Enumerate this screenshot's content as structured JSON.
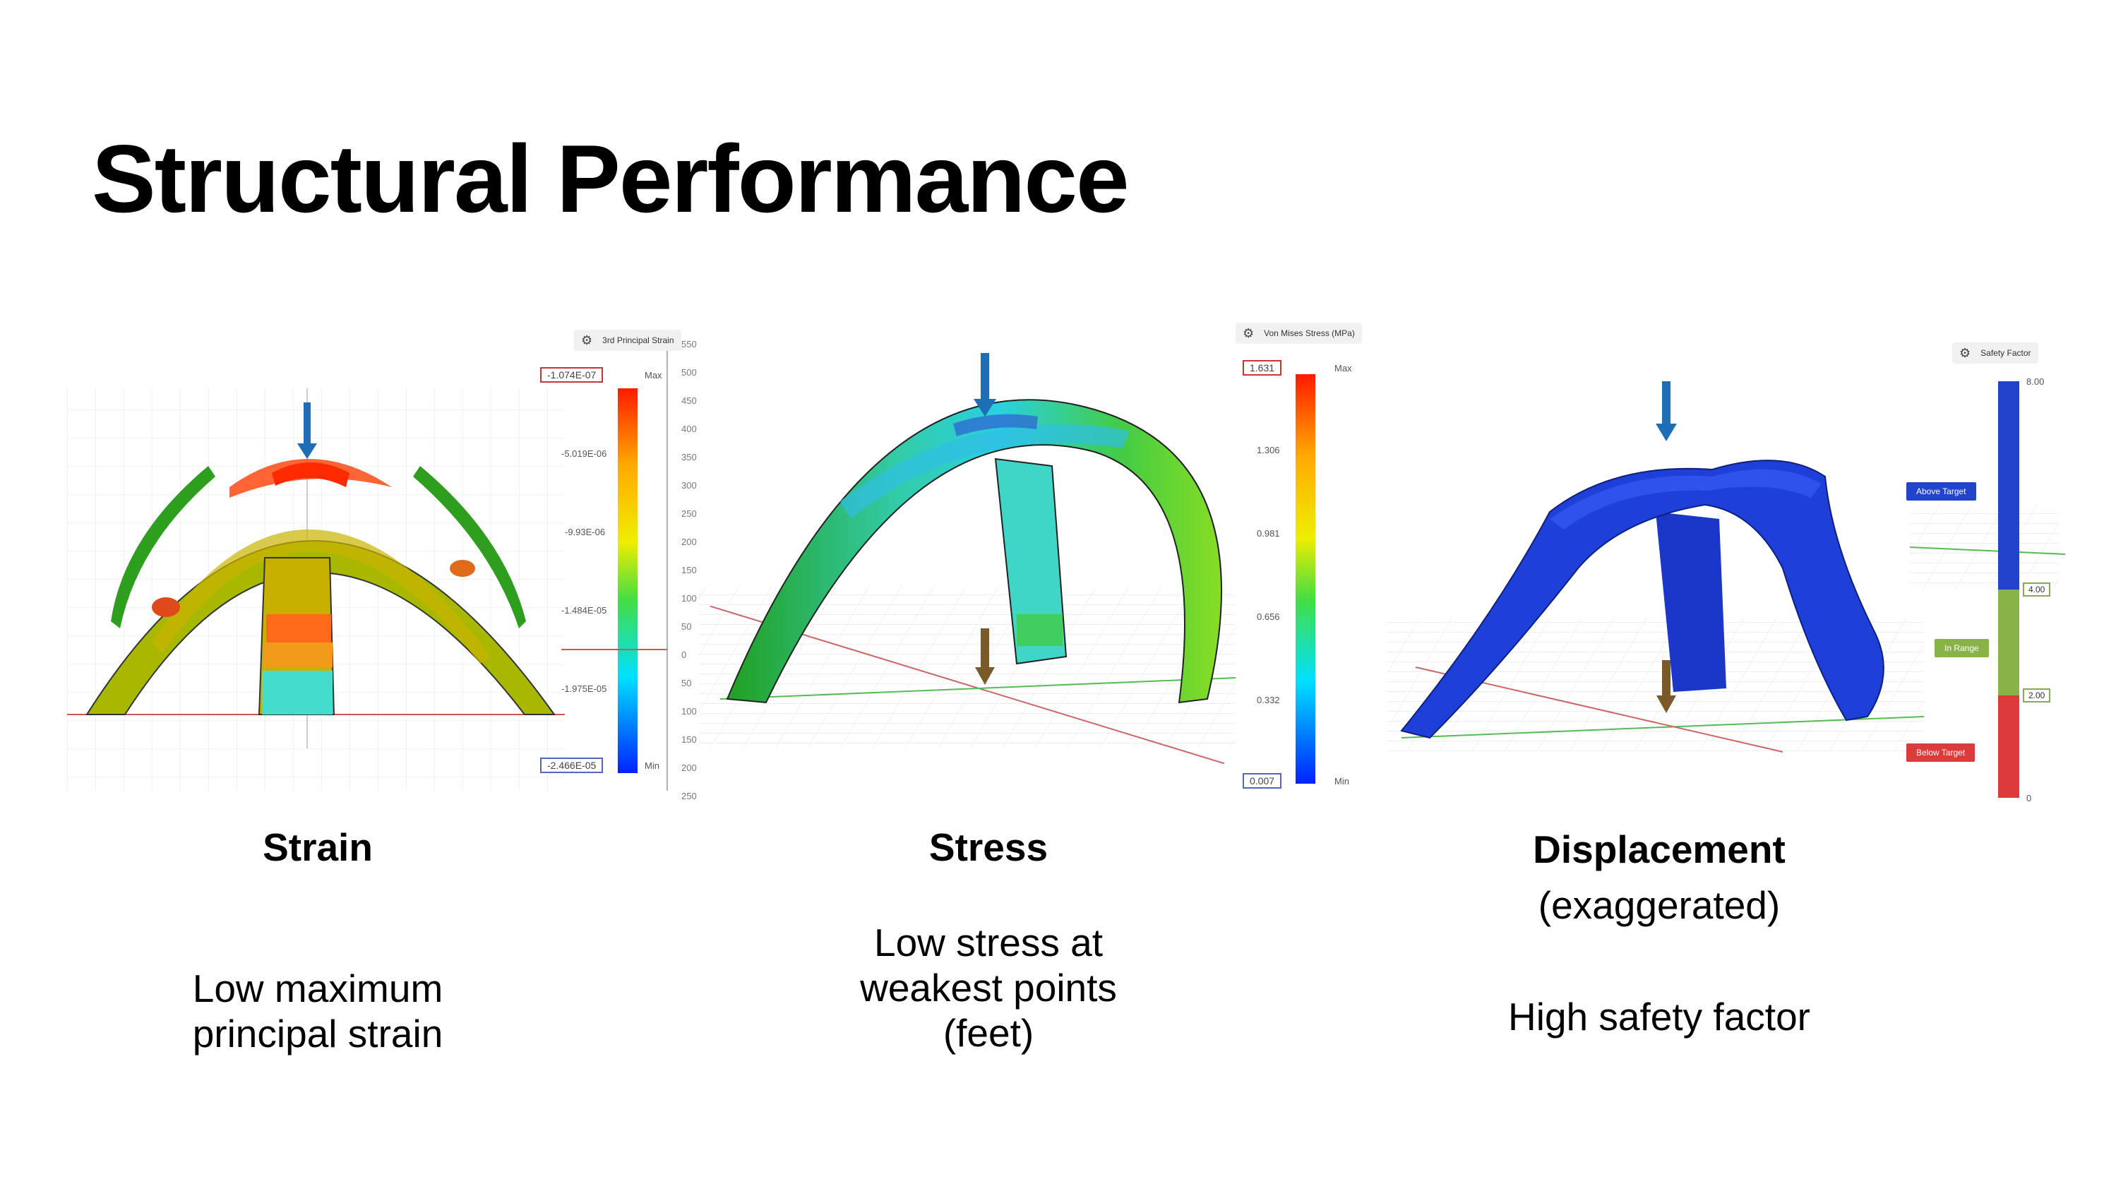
{
  "slide": {
    "title": "Structural Performance"
  },
  "strain": {
    "legend_title": "3rd Principal Strain",
    "max_value": "-1.074E-07",
    "min_value": "-2.466E-05",
    "ticks": [
      "-5.019E-06",
      "-9.93E-06",
      "-1.484E-05",
      "-1.975E-05"
    ],
    "max_label": "Max",
    "min_label": "Min",
    "ruler": [
      "550",
      "500",
      "450",
      "400",
      "350",
      "300",
      "250",
      "200",
      "150",
      "100",
      "50",
      "0",
      "50",
      "100",
      "150",
      "200",
      "250"
    ],
    "caption_title": "Strain",
    "caption_lines": [
      "Low maximum",
      "principal strain"
    ]
  },
  "stress": {
    "legend_title": "Von Mises Stress (MPa)",
    "max_value": "1.631",
    "min_value": "0.007",
    "ticks": [
      "1.306",
      "0.981",
      "0.656",
      "0.332"
    ],
    "max_label": "Max",
    "min_label": "Min",
    "caption_title": "Stress",
    "caption_lines": [
      "Low stress at",
      "weakest points",
      "(feet)"
    ]
  },
  "displacement": {
    "legend_title": "Safety Factor",
    "top_value": "8.00",
    "mid_value": "4.00",
    "low_value": "2.00",
    "bottom_value": "0",
    "above_label": "Above Target",
    "range_label": "In Range",
    "below_label": "Below Target",
    "caption_title": "Displacement",
    "caption_sub": "(exaggerated)",
    "caption_line": "High safety factor"
  },
  "colors": {
    "load_arrow": "#1f6db5",
    "reaction_arrow": "#7a5a28",
    "safety_blue": "#2244cc",
    "safety_green": "#88b447",
    "safety_red": "#dd3b3b"
  }
}
